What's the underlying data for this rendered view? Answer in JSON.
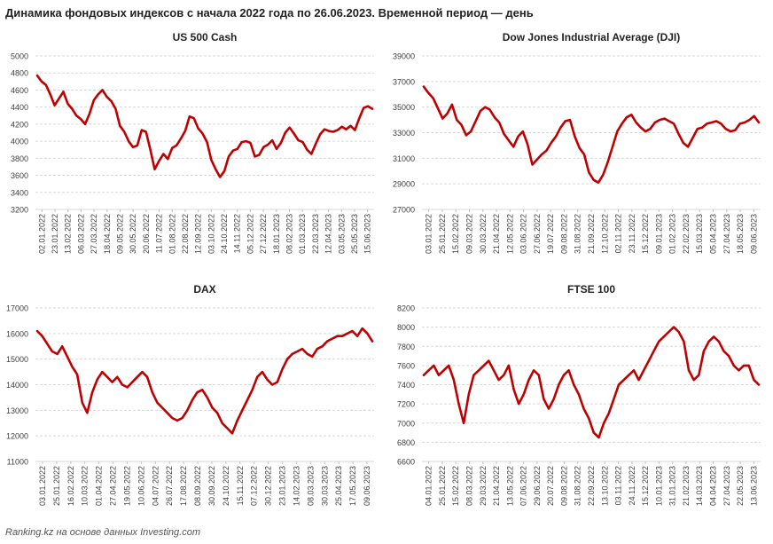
{
  "header": {
    "title": "Динамика фондовых индексов с начала 2022 года по 26.06.2023. Временной период — день"
  },
  "footer": {
    "source": "Ranking.kz на основе данных Investing.com"
  },
  "style": {
    "line_color": "#c00000",
    "grid_color": "#d9d9d9",
    "axis_text_color": "#404040"
  },
  "chart_data": [
    {
      "type": "line",
      "title": "US 500 Cash",
      "ylim": [
        3200,
        5000
      ],
      "yticks": [
        3200,
        3400,
        3600,
        3800,
        4000,
        4200,
        4400,
        4600,
        4800,
        5000
      ],
      "xticks": [
        "02.01.2022",
        "23.01.2022",
        "13.02.2022",
        "06.03.2022",
        "27.03.2022",
        "18.04.2022",
        "09.05.2022",
        "30.05.2022",
        "20.06.2022",
        "11.07.2022",
        "01.08.2022",
        "22.08.2022",
        "12.09.2022",
        "03.10.2022",
        "24.10.2022",
        "14.11.2022",
        "05.12.2022",
        "27.12.2022",
        "18.01.2023",
        "08.02.2023",
        "01.03.2023",
        "22.03.2023",
        "12.04.2023",
        "03.05.2023",
        "25.05.2023",
        "15.06.2023"
      ],
      "series": [
        {
          "values": [
            4770,
            4700,
            4660,
            4550,
            4420,
            4500,
            4580,
            4440,
            4380,
            4300,
            4260,
            4200,
            4320,
            4480,
            4550,
            4600,
            4520,
            4470,
            4380,
            4180,
            4110,
            4000,
            3930,
            3950,
            4130,
            4110,
            3900,
            3670,
            3770,
            3850,
            3790,
            3920,
            3950,
            4030,
            4120,
            4290,
            4270,
            4150,
            4090,
            3990,
            3780,
            3670,
            3580,
            3650,
            3820,
            3890,
            3910,
            3990,
            4000,
            3980,
            3820,
            3840,
            3930,
            3960,
            4010,
            3910,
            3980,
            4100,
            4160,
            4090,
            4010,
            3990,
            3900,
            3850,
            3970,
            4080,
            4140,
            4120,
            4110,
            4130,
            4170,
            4140,
            4180,
            4130,
            4270,
            4390,
            4410,
            4380
          ]
        }
      ]
    },
    {
      "type": "line",
      "title": "Dow Jones Industrial Average (DJI)",
      "ylim": [
        27000,
        39000
      ],
      "yticks": [
        27000,
        29000,
        31000,
        33000,
        35000,
        37000,
        39000
      ],
      "xticks": [
        "03.01.2022",
        "25.01.2022",
        "15.02.2022",
        "09.03.2022",
        "30.03.2022",
        "21.04.2022",
        "12.05.2022",
        "03.06.2022",
        "27.06.2022",
        "19.07.2022",
        "09.08.2022",
        "31.08.2022",
        "21.09.2022",
        "12.10.2022",
        "02.11.2022",
        "23.11.2022",
        "15.12.2022",
        "09.01.2023",
        "01.02.2023",
        "22.02.2023",
        "15.03.2023",
        "05.04.2023",
        "27.04.2023",
        "18.05.2023",
        "09.06.2023"
      ],
      "series": [
        {
          "values": [
            36600,
            36100,
            35700,
            34900,
            34100,
            34500,
            35200,
            34000,
            33600,
            32800,
            33100,
            33900,
            34700,
            35000,
            34800,
            34200,
            33800,
            32900,
            32400,
            31900,
            32700,
            33100,
            32100,
            30500,
            30900,
            31300,
            31600,
            32200,
            32700,
            33400,
            33900,
            34000,
            32700,
            31800,
            31300,
            29900,
            29300,
            29100,
            29700,
            30700,
            31900,
            33100,
            33700,
            34200,
            34400,
            33800,
            33400,
            33100,
            33300,
            33800,
            34000,
            34100,
            33900,
            33700,
            32900,
            32200,
            31900,
            32600,
            33300,
            33400,
            33700,
            33800,
            33900,
            33700,
            33300,
            33100,
            33200,
            33700,
            33800,
            34000,
            34300,
            33800
          ]
        }
      ]
    },
    {
      "type": "line",
      "title": "DAX",
      "ylim": [
        11000,
        17000
      ],
      "yticks": [
        11000,
        12000,
        13000,
        14000,
        15000,
        16000,
        17000
      ],
      "xticks": [
        "03.01.2022",
        "25.01.2022",
        "16.02.2022",
        "10.03.2022",
        "01.04.2022",
        "27.04.2022",
        "19.05.2022",
        "10.06.2022",
        "04.07.2022",
        "26.07.2022",
        "17.08.2022",
        "08.09.2022",
        "30.09.2022",
        "24.10.2022",
        "15.11.2022",
        "07.12.2022",
        "30.12.2022",
        "23.01.2023",
        "14.02.2023",
        "08.03.2023",
        "30.03.2023",
        "25.04.2023",
        "17.05.2023",
        "09.06.2023"
      ],
      "series": [
        {
          "values": [
            16100,
            15900,
            15600,
            15300,
            15200,
            15500,
            15100,
            14700,
            14400,
            13300,
            12900,
            13700,
            14200,
            14500,
            14300,
            14100,
            14300,
            14000,
            13900,
            14100,
            14300,
            14500,
            14300,
            13700,
            13300,
            13100,
            12900,
            12700,
            12600,
            12700,
            13000,
            13400,
            13700,
            13800,
            13500,
            13100,
            12900,
            12500,
            12300,
            12100,
            12600,
            13000,
            13400,
            13800,
            14300,
            14500,
            14200,
            14000,
            14100,
            14600,
            15000,
            15200,
            15300,
            15400,
            15200,
            15100,
            15400,
            15500,
            15700,
            15800,
            15900,
            15900,
            16000,
            16100,
            15900,
            16200,
            16000,
            15700
          ]
        }
      ]
    },
    {
      "type": "line",
      "title": "FTSE 100",
      "ylim": [
        6600,
        8200
      ],
      "yticks": [
        6600,
        6800,
        7000,
        7200,
        7400,
        7600,
        7800,
        8000,
        8200
      ],
      "xticks": [
        "04.01.2022",
        "25.01.2022",
        "15.02.2022",
        "08.03.2022",
        "29.03.2022",
        "21.04.2022",
        "13.05.2022",
        "07.06.2022",
        "29.06.2022",
        "20.07.2022",
        "09.08.2022",
        "31.08.2022",
        "22.09.2022",
        "13.10.2022",
        "03.11.2022",
        "24.11.2022",
        "15.12.2022",
        "10.01.2023",
        "31.01.2023",
        "21.02.2023",
        "14.03.2023",
        "04.04.2023",
        "27.04.2023",
        "22.05.2023",
        "13.06.2023"
      ],
      "series": [
        {
          "values": [
            7500,
            7550,
            7600,
            7500,
            7550,
            7600,
            7450,
            7200,
            7000,
            7300,
            7500,
            7550,
            7600,
            7650,
            7550,
            7450,
            7500,
            7600,
            7350,
            7200,
            7300,
            7450,
            7550,
            7500,
            7250,
            7150,
            7250,
            7400,
            7500,
            7550,
            7400,
            7300,
            7150,
            7050,
            6900,
            6850,
            7000,
            7100,
            7250,
            7400,
            7450,
            7500,
            7550,
            7450,
            7550,
            7650,
            7750,
            7850,
            7900,
            7950,
            8000,
            7950,
            7850,
            7550,
            7450,
            7500,
            7750,
            7850,
            7900,
            7850,
            7750,
            7700,
            7600,
            7550,
            7600,
            7600,
            7450,
            7400
          ]
        }
      ]
    }
  ]
}
